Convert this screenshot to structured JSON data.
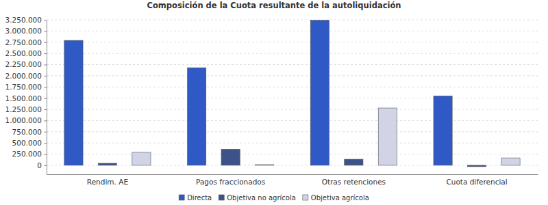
{
  "chart_data": {
    "type": "bar",
    "title": "Composición de la Cuota resultante de la autoliquidación",
    "categories": [
      "Rendim. AE",
      "Pagos fraccionados",
      "Otras retenciones",
      "Cuota diferencial"
    ],
    "series": [
      {
        "name": "Directa",
        "color": "#2f59c4",
        "values": [
          2790000,
          2180000,
          3240000,
          1550000
        ]
      },
      {
        "name": "Objetiva no agrícola",
        "color": "#3c5288",
        "values": [
          45000,
          360000,
          135000,
          -30000
        ]
      },
      {
        "name": "Objetiva agrícola",
        "color": "#d0d4e6",
        "values": [
          290000,
          15000,
          1280000,
          165000
        ]
      }
    ],
    "ylim": [
      -200000,
      3250000
    ],
    "yticks": [
      0,
      {
        "value": 250000,
        "label": "250.000"
      },
      {
        "value": 500000,
        "label": "500.000"
      },
      {
        "value": 750000,
        "label": "750.000"
      },
      {
        "value": 1000000,
        "label": "1.000.000"
      },
      {
        "value": 1250000,
        "label": "1.250.000"
      },
      {
        "value": 1500000,
        "label": "1.500.000"
      },
      {
        "value": 1750000,
        "label": "1.750.000"
      },
      {
        "value": 2000000,
        "label": "2.000.000"
      },
      {
        "value": 2250000,
        "label": "2.250.000"
      },
      {
        "value": 2500000,
        "label": "2.500.000"
      },
      {
        "value": 2750000,
        "label": "2.750.000"
      },
      {
        "value": 3000000,
        "label": "3.000.000"
      },
      {
        "value": 3250000,
        "label": "3.250.000"
      }
    ],
    "grid": true,
    "legend": "bottom"
  }
}
